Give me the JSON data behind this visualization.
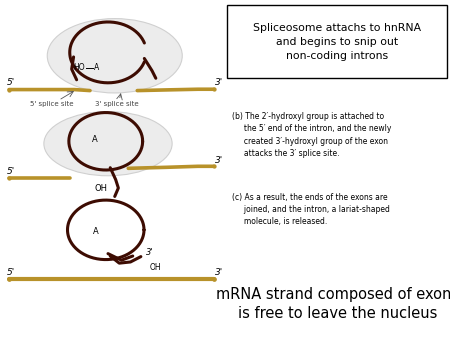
{
  "title_box_text": "Spliceosome attachs to hnRNA\nand begins to snip out\nnon-coding introns",
  "bottom_text_line1": "mRNA strand composed of exons",
  "bottom_text_line2": "is free to leave the nucleus",
  "label_b_text": "(b) The 2′-hydroxyl group is attached to\n     the 5′ end of the intron, and the newly\n     created 3′-hydroxyl group of the exon\n     attacks the 3′ splice site.",
  "label_c_text": "(c) As a result, the ends of the exons are\n     joined, and the intron, a lariat-shaped\n     molecule, is released.",
  "dark_brown": "#3d0c02",
  "gold": "#b8922a",
  "ellipse_color": "#ececec",
  "ellipse_edge": "#d0d0d0",
  "bg_color": "#ffffff",
  "text_color": "#222222",
  "figw": 4.5,
  "figh": 3.38,
  "dpi": 100
}
